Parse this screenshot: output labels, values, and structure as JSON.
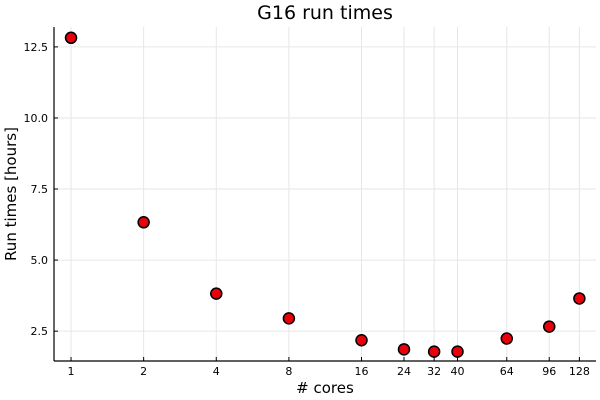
{
  "chart_data": {
    "type": "scatter",
    "title": "G16 run times",
    "xlabel": "# cores",
    "ylabel": "Run times [hours]",
    "x_scale": "log2",
    "xlim": [
      0.85,
      150
    ],
    "ylim": [
      1.45,
      13.2
    ],
    "x_ticks": [
      1,
      2,
      4,
      8,
      16,
      24,
      32,
      40,
      64,
      96,
      128
    ],
    "y_ticks": [
      2.5,
      5.0,
      7.5,
      10.0,
      12.5
    ],
    "y_tick_labels": [
      "2.5",
      "5.0",
      "7.5",
      "10.0",
      "12.5"
    ],
    "grid": true,
    "legend": "none",
    "marker_color": "#e8000b",
    "marker_edge_color": "#000000",
    "series": [
      {
        "x": [
          1,
          2,
          4,
          8,
          16,
          24,
          32,
          40,
          64,
          96,
          128
        ],
        "y": [
          12.82,
          6.33,
          3.82,
          2.95,
          2.18,
          1.86,
          1.78,
          1.78,
          2.24,
          2.66,
          3.65
        ]
      }
    ]
  }
}
